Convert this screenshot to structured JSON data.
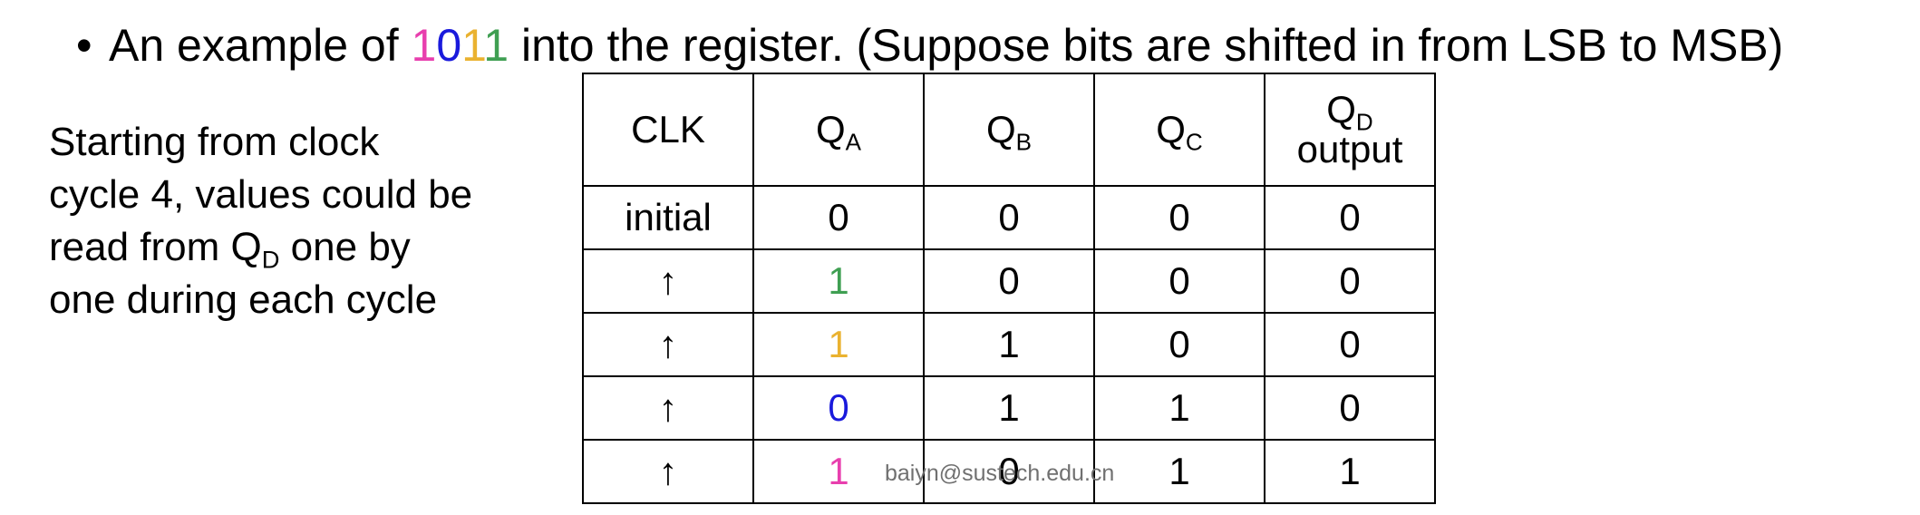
{
  "bullet": {
    "prefix": "An example of ",
    "digits": [
      {
        "text": "1",
        "color": "#e83fae"
      },
      {
        "text": "0",
        "color": "#1a1adc"
      },
      {
        "text": "1",
        "color": "#eab230"
      },
      {
        "text": "1",
        "color": "#3f9f52"
      }
    ],
    "suffix": " into the register. (Suppose bits are shifted in from LSB to MSB)"
  },
  "note": {
    "line1": "Starting from clock",
    "line2": "cycle 4, values could be",
    "line3_before": "read from Q",
    "line3_sub": "D",
    "line3_after": " one by",
    "line4": "one during each cycle"
  },
  "table": {
    "headers": {
      "clk": "CLK",
      "qa_base": "Q",
      "qa_sub": "A",
      "qb_base": "Q",
      "qb_sub": "B",
      "qc_base": "Q",
      "qc_sub": "C",
      "qd_base": "Q",
      "qd_sub": "D",
      "qd_extra": "output"
    },
    "rows": [
      {
        "clk": "initial",
        "qa": "0",
        "qa_color": "#000000",
        "qb": "0",
        "qc": "0",
        "qd": "0"
      },
      {
        "clk": "↑",
        "qa": "1",
        "qa_color": "#3f9f52",
        "qb": "0",
        "qc": "0",
        "qd": "0"
      },
      {
        "clk": "↑",
        "qa": "1",
        "qa_color": "#eab230",
        "qb": "1",
        "qc": "0",
        "qd": "0"
      },
      {
        "clk": "↑",
        "qa": "0",
        "qa_color": "#1a1adc",
        "qb": "1",
        "qc": "1",
        "qd": "0"
      },
      {
        "clk": "↑",
        "qa": "1",
        "qa_color": "#e83fae",
        "qb": "0",
        "qc": "1",
        "qd": "1"
      }
    ]
  },
  "watermark": "baiyn@sustech.edu.cn"
}
